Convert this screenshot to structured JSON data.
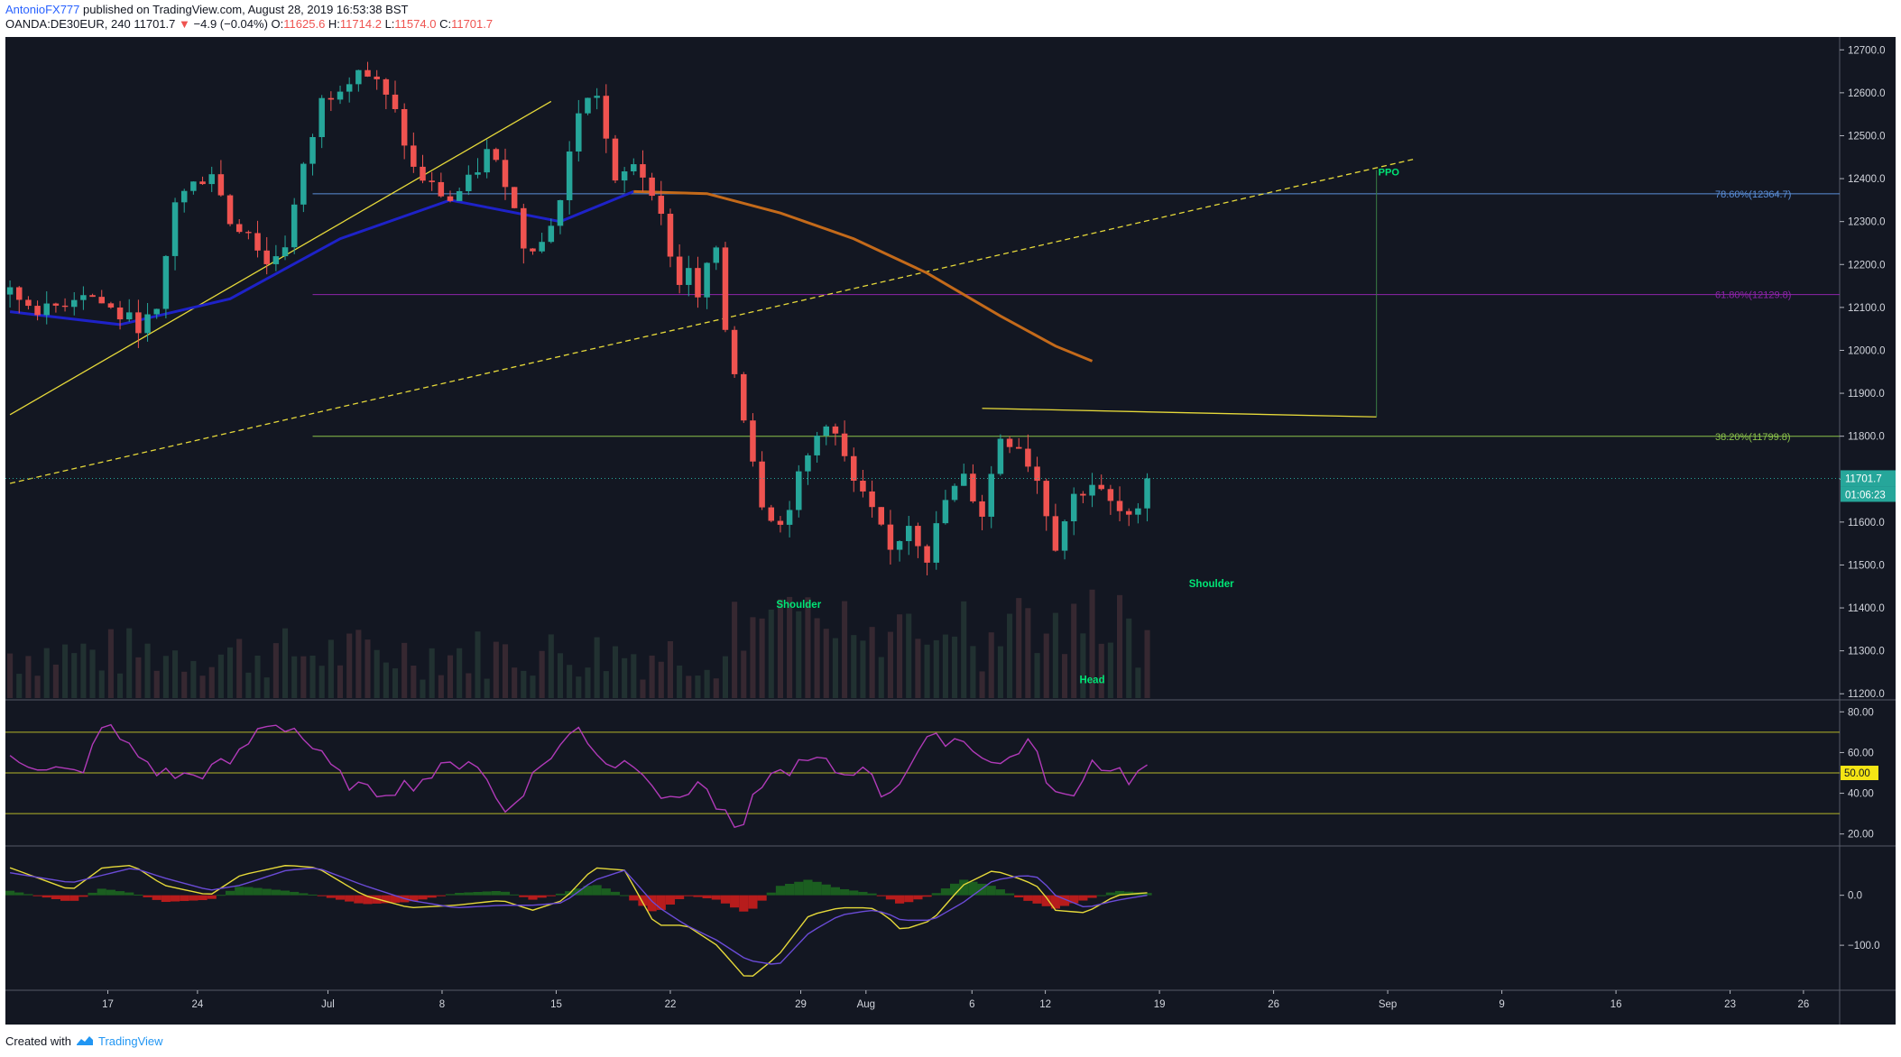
{
  "header": {
    "author": "AntonioFX777",
    "published_text": "published on TradingView.com, August 28, 2019 16:53:38 BST",
    "symbol": "OANDA:DE30EUR, 240",
    "last": "11701.7",
    "change_arrow": "▼",
    "change": "−4.9 (−0.04%)",
    "o_label": "O:",
    "o_value": "11625.6",
    "h_label": "H:",
    "h_value": "11714.2",
    "l_label": "L:",
    "l_value": "11574.0",
    "c_label": "C:",
    "c_value": "11701.7"
  },
  "footer": {
    "created_with": "Created with",
    "brand": "TradingView"
  },
  "colors": {
    "background": "#131722",
    "up": "#26a69a",
    "down": "#ef5350",
    "ma_blue": "#1e22c8",
    "ma_orange": "#c46a1a",
    "trend": "#e6d93a",
    "rsi": "#b03ab8",
    "macd_fast": "#e6d93a",
    "macd_slow": "#6a4bd6",
    "hist_pos": "#1b5e20",
    "hist_neg": "#b71c1c",
    "fib_786": "#5b8fd9",
    "fib_618": "#8e24aa",
    "fib_382": "#8bc34a",
    "label_green": "#00e676"
  },
  "chart_data": [
    {
      "type": "candlestick",
      "timeframe": "240",
      "price_axis": {
        "ticks": [
          "12700.0",
          "12600.0",
          "12500.0",
          "12400.0",
          "12300.0",
          "12200.0",
          "12100.0",
          "12000.0",
          "11900.0",
          "11800.0",
          "11700.0",
          "11600.0",
          "11500.0",
          "11400.0",
          "11300.0",
          "11200.0"
        ],
        "range": [
          11190,
          12730
        ]
      },
      "x_axis": {
        "ticks": [
          "17",
          "24",
          "Jul",
          "8",
          "15",
          "22",
          "29",
          "Aug",
          "6",
          "12",
          "19",
          "26",
          "Sep",
          "9",
          "16",
          "23",
          "26"
        ]
      },
      "last_price_tag": "11701.7",
      "countdown_tag": "01:06:23",
      "price_path": [
        [
          0,
          12130
        ],
        [
          4,
          12090
        ],
        [
          8,
          12140
        ],
        [
          12,
          12080
        ],
        [
          14,
          12060
        ],
        [
          16,
          12080
        ],
        [
          18,
          12350
        ],
        [
          22,
          12420
        ],
        [
          24,
          12300
        ],
        [
          26,
          12280
        ],
        [
          28,
          12200
        ],
        [
          30,
          12250
        ],
        [
          32,
          12420
        ],
        [
          34,
          12580
        ],
        [
          38,
          12660
        ],
        [
          40,
          12620
        ],
        [
          42,
          12550
        ],
        [
          44,
          12420
        ],
        [
          46,
          12380
        ],
        [
          48,
          12350
        ],
        [
          50,
          12390
        ],
        [
          52,
          12460
        ],
        [
          54,
          12400
        ],
        [
          56,
          12250
        ],
        [
          58,
          12250
        ],
        [
          60,
          12350
        ],
        [
          62,
          12560
        ],
        [
          64,
          12600
        ],
        [
          66,
          12380
        ],
        [
          68,
          12440
        ],
        [
          70,
          12380
        ],
        [
          72,
          12230
        ],
        [
          73,
          12150
        ],
        [
          74,
          12200
        ],
        [
          75,
          12110
        ],
        [
          76,
          12200
        ],
        [
          77,
          12220
        ],
        [
          78,
          12050
        ],
        [
          80,
          11850
        ],
        [
          82,
          11650
        ],
        [
          84,
          11590
        ],
        [
          86,
          11700
        ],
        [
          88,
          11800
        ],
        [
          89,
          11840
        ],
        [
          90,
          11800
        ],
        [
          92,
          11690
        ],
        [
          94,
          11620
        ],
        [
          96,
          11530
        ],
        [
          98,
          11600
        ],
        [
          100,
          11520
        ],
        [
          102,
          11650
        ],
        [
          104,
          11700
        ],
        [
          106,
          11620
        ],
        [
          108,
          11800
        ],
        [
          110,
          11780
        ],
        [
          112,
          11700
        ],
        [
          114,
          11550
        ],
        [
          116,
          11660
        ],
        [
          118,
          11690
        ],
        [
          120,
          11640
        ],
        [
          122,
          11600
        ],
        [
          124,
          11701.7
        ]
      ],
      "last_bar_index": 124,
      "total_slots": 200,
      "moving_averages": [
        {
          "name": "MA blue",
          "path": [
            [
              0,
              12090
            ],
            [
              12,
              12060
            ],
            [
              24,
              12120
            ],
            [
              36,
              12260
            ],
            [
              48,
              12350
            ],
            [
              60,
              12300
            ],
            [
              68,
              12370
            ]
          ]
        },
        {
          "name": "MA orange",
          "path": [
            [
              68,
              12370
            ],
            [
              76,
              12365
            ],
            [
              84,
              12320
            ],
            [
              92,
              12260
            ],
            [
              100,
              12180
            ],
            [
              108,
              12080
            ],
            [
              114,
              12010
            ],
            [
              118,
              11975
            ]
          ]
        }
      ],
      "fibonacci": [
        {
          "label": "78.60%(12364.7)",
          "price": 12364.7,
          "from": 33
        },
        {
          "label": "61.80%(12129.8)",
          "price": 12129.8,
          "from": 33
        },
        {
          "label": "38.20%(11799.8)",
          "price": 11799.8,
          "from": 33
        }
      ],
      "trendlines": [
        {
          "name": "rising support",
          "style": "solid",
          "from": [
            0,
            11850
          ],
          "to": [
            59,
            12580
          ]
        },
        {
          "name": "long trend",
          "style": "dashed",
          "from": [
            0,
            11690
          ],
          "to": [
            153,
            12445
          ]
        },
        {
          "name": "neckline",
          "style": "solid",
          "from": [
            106,
            11865
          ],
          "to": [
            149,
            11845
          ]
        }
      ],
      "price_objective": {
        "label": "PPO",
        "x": 149,
        "from": 11845,
        "to": 12420
      },
      "annotations": [
        {
          "text": "Shoulder",
          "x": 86,
          "price": 11400
        },
        {
          "text": "Head",
          "x": 118,
          "price": 11225
        },
        {
          "text": "Shoulder",
          "x": 131,
          "price": 11448
        }
      ]
    },
    {
      "type": "line",
      "name": "RSI",
      "ticks": [
        "80.00",
        "60.00",
        "40.00",
        "20.00"
      ],
      "range": [
        15,
        85
      ],
      "levels": [
        70,
        50,
        30
      ],
      "level_tag": "50.00",
      "path": [
        [
          0,
          58
        ],
        [
          6,
          52
        ],
        [
          10,
          48
        ],
        [
          12,
          76
        ],
        [
          16,
          62
        ],
        [
          20,
          50
        ],
        [
          24,
          48
        ],
        [
          30,
          56
        ],
        [
          34,
          75
        ],
        [
          38,
          72
        ],
        [
          44,
          48
        ],
        [
          48,
          40
        ],
        [
          54,
          45
        ],
        [
          58,
          52
        ],
        [
          62,
          58
        ],
        [
          66,
          30
        ],
        [
          72,
          58
        ],
        [
          76,
          72
        ],
        [
          80,
          54
        ],
        [
          84,
          56
        ],
        [
          88,
          34
        ],
        [
          92,
          46
        ],
        [
          96,
          26
        ],
        [
          98,
          20
        ],
        [
          100,
          45
        ],
        [
          104,
          52
        ],
        [
          108,
          56
        ],
        [
          112,
          48
        ],
        [
          114,
          56
        ],
        [
          116,
          40
        ],
        [
          118,
          42
        ],
        [
          122,
          64
        ],
        [
          126,
          68
        ],
        [
          130,
          60
        ],
        [
          132,
          52
        ],
        [
          136,
          66
        ],
        [
          140,
          38
        ],
        [
          142,
          36
        ],
        [
          144,
          56
        ],
        [
          148,
          52
        ],
        [
          150,
          46
        ],
        [
          152,
          54
        ]
      ]
    },
    {
      "type": "line",
      "name": "MACD",
      "ticks": [
        "0.0",
        "−100.0"
      ],
      "range": [
        -190,
        95
      ],
      "series": [
        {
          "name": "macd",
          "path": [
            [
              0,
              55
            ],
            [
              8,
              10
            ],
            [
              12,
              55
            ],
            [
              16,
              60
            ],
            [
              20,
              20
            ],
            [
              26,
              0
            ],
            [
              30,
              40
            ],
            [
              36,
              60
            ],
            [
              40,
              55
            ],
            [
              46,
              0
            ],
            [
              52,
              -25
            ],
            [
              58,
              -20
            ],
            [
              64,
              -10
            ],
            [
              68,
              -30
            ],
            [
              72,
              -10
            ],
            [
              76,
              55
            ],
            [
              80,
              50
            ],
            [
              84,
              -60
            ],
            [
              88,
              -60
            ],
            [
              92,
              -100
            ],
            [
              96,
              -170
            ],
            [
              100,
              -120
            ],
            [
              104,
              -40
            ],
            [
              108,
              -25
            ],
            [
              112,
              -25
            ],
            [
              114,
              -40
            ],
            [
              116,
              -70
            ],
            [
              120,
              -50
            ],
            [
              124,
              20
            ],
            [
              128,
              50
            ],
            [
              132,
              30
            ],
            [
              134,
              15
            ],
            [
              136,
              -30
            ],
            [
              140,
              -35
            ],
            [
              144,
              0
            ],
            [
              148,
              5
            ]
          ]
        },
        {
          "name": "signal",
          "path": [
            [
              0,
              45
            ],
            [
              8,
              25
            ],
            [
              12,
              40
            ],
            [
              16,
              55
            ],
            [
              20,
              35
            ],
            [
              26,
              10
            ],
            [
              30,
              20
            ],
            [
              36,
              50
            ],
            [
              40,
              55
            ],
            [
              46,
              20
            ],
            [
              52,
              -10
            ],
            [
              58,
              -25
            ],
            [
              64,
              -20
            ],
            [
              68,
              -20
            ],
            [
              72,
              -15
            ],
            [
              76,
              30
            ],
            [
              80,
              50
            ],
            [
              84,
              -20
            ],
            [
              88,
              -60
            ],
            [
              92,
              -90
            ],
            [
              96,
              -130
            ],
            [
              100,
              -140
            ],
            [
              104,
              -75
            ],
            [
              108,
              -40
            ],
            [
              112,
              -30
            ],
            [
              114,
              -35
            ],
            [
              116,
              -50
            ],
            [
              120,
              -50
            ],
            [
              124,
              -15
            ],
            [
              128,
              30
            ],
            [
              132,
              40
            ],
            [
              134,
              35
            ],
            [
              136,
              0
            ],
            [
              140,
              -25
            ],
            [
              144,
              -10
            ],
            [
              148,
              0
            ]
          ]
        }
      ]
    }
  ]
}
